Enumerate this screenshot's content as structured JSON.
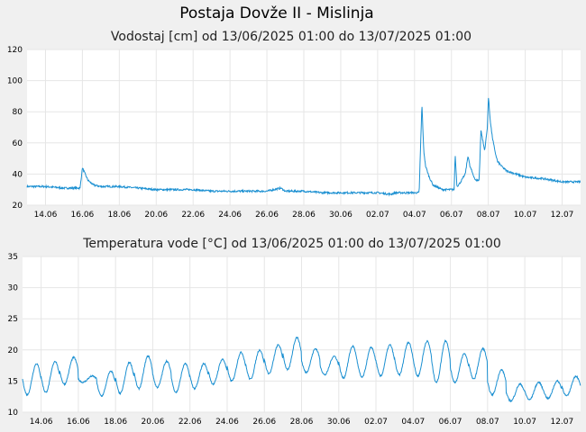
{
  "page": {
    "title": "Postaja Dovže II - Mislinja"
  },
  "colors": {
    "background": "#f0f0f0",
    "plot_background": "#ffffff",
    "grid": "#e6e6e6",
    "series": "#1a8fd1"
  },
  "chart_data": [
    {
      "type": "line",
      "title": "Vodostaj [cm] od 13/06/2025 01:00 do 13/07/2025 01:00",
      "xlabel": "",
      "ylabel": "",
      "ylim": [
        20,
        120
      ],
      "yticks": [
        20,
        40,
        60,
        80,
        100,
        120
      ],
      "xlim_days": [
        0,
        30
      ],
      "x_tick_days": [
        1,
        3,
        5,
        7,
        9,
        11,
        13,
        15,
        17,
        19,
        21,
        23,
        25,
        27,
        29
      ],
      "x_tick_labels": [
        "14.06",
        "16.06",
        "18.06",
        "20.06",
        "22.06",
        "24.06",
        "26.06",
        "28.06",
        "30.06",
        "02.07",
        "04.07",
        "06.07",
        "08.07",
        "10.07",
        "12.07"
      ],
      "grid": true,
      "series": [
        {
          "name": "",
          "x": [
            "13.06 01:00",
            "14.06 01:00",
            "15.06 01:00",
            "15.06 22:00",
            "16.06 01:00",
            "16.06 08:00",
            "16.06 15:00",
            "17.06 01:00",
            "18.06 01:00",
            "19.06 01:00",
            "20.06 01:00",
            "21.06 01:00",
            "22.06 01:00",
            "23.06 01:00",
            "24.06 01:00",
            "25.06 01:00",
            "26.06 01:00",
            "26.06 19:00",
            "27.06 01:00",
            "28.06 01:00",
            "29.06 01:00",
            "30.06 01:00",
            "01.07 01:00",
            "02.07 01:00",
            "02.07 18:00",
            "03.07 01:00",
            "04.07 01:00",
            "04.07 07:00",
            "04.07 10:00",
            "04.07 12:00",
            "04.07 15:00",
            "04.07 20:00",
            "05.07 01:00",
            "05.07 13:00",
            "06.07 01:00",
            "06.07 05:00",
            "06.07 06:00",
            "06.07 08:00",
            "06.07 12:00",
            "06.07 19:00",
            "06.07 23:00",
            "07.07 01:00",
            "07.07 08:00",
            "07.07 13:00",
            "07.07 15:00",
            "07.07 20:00",
            "07.07 23:00",
            "08.07 01:00",
            "08.07 03:00",
            "08.07 06:00",
            "08.07 09:00",
            "08.07 13:00",
            "08.07 20:00",
            "09.07 01:00",
            "09.07 13:00",
            "10.07 01:00",
            "11.07 01:00",
            "11.07 13:00",
            "12.07 01:00",
            "13.07 01:00"
          ],
          "x_days": [
            0,
            1,
            2,
            2.875,
            3,
            3.3,
            3.6,
            4,
            5,
            6,
            7,
            8,
            9,
            10,
            11,
            12,
            13,
            13.75,
            14,
            15,
            16,
            17,
            18,
            19,
            19.7,
            20,
            21,
            21.25,
            21.4,
            21.5,
            21.6,
            21.8,
            22,
            22.5,
            23,
            23.15,
            23.2,
            23.3,
            23.45,
            23.75,
            23.9,
            24,
            24.3,
            24.5,
            24.6,
            24.8,
            24.95,
            25,
            25.1,
            25.2,
            25.35,
            25.5,
            25.8,
            26,
            26.5,
            27,
            28,
            28.5,
            29,
            30
          ],
          "values": [
            32,
            32,
            31,
            31,
            44,
            36,
            33,
            32,
            32,
            31,
            30,
            30,
            30,
            29,
            29,
            29,
            29,
            31,
            29,
            29,
            28,
            28,
            28,
            28,
            27,
            28,
            28,
            28,
            85,
            55,
            45,
            38,
            33,
            30,
            30,
            30,
            53,
            32,
            34,
            40,
            52,
            45,
            36,
            36,
            68,
            55,
            70,
            90,
            75,
            65,
            55,
            48,
            44,
            42,
            40,
            38,
            37,
            36,
            35,
            35
          ]
        }
      ]
    },
    {
      "type": "line",
      "title": "Temperatura vode [°C] od 13/06/2025 01:00 do 13/07/2025 01:00",
      "xlabel": "",
      "ylabel": "",
      "ylim": [
        10,
        35
      ],
      "yticks": [
        10,
        15,
        20,
        25,
        30,
        35
      ],
      "xlim_days": [
        0,
        30
      ],
      "x_tick_days": [
        1,
        3,
        5,
        7,
        9,
        11,
        13,
        15,
        17,
        19,
        21,
        23,
        25,
        27,
        29
      ],
      "x_tick_labels": [
        "14.06",
        "16.06",
        "18.06",
        "20.06",
        "22.06",
        "24.06",
        "26.06",
        "28.06",
        "30.06",
        "02.07",
        "04.07",
        "06.07",
        "08.07",
        "10.07",
        "12.07"
      ],
      "grid": true,
      "series": [
        {
          "name": "",
          "daily_min": [
            12.8,
            13.2,
            14.5,
            14.8,
            12.6,
            13.0,
            13.8,
            14.0,
            13.2,
            13.8,
            14.5,
            15.0,
            15.3,
            16.2,
            16.8,
            16.4,
            16.0,
            15.5,
            15.6,
            15.8,
            16.0,
            15.8,
            14.8,
            14.8,
            15.3,
            12.8,
            11.8,
            12.0,
            12.2,
            12.6
          ],
          "daily_max": [
            17.8,
            18.2,
            18.8,
            15.8,
            16.6,
            18.0,
            19.0,
            18.2,
            17.8,
            17.8,
            18.5,
            19.6,
            20.0,
            20.8,
            22.0,
            20.2,
            19.0,
            20.6,
            20.4,
            20.8,
            21.2,
            21.4,
            21.5,
            19.4,
            20.2,
            16.8,
            14.5,
            14.8,
            15.0,
            15.8
          ]
        }
      ]
    }
  ]
}
